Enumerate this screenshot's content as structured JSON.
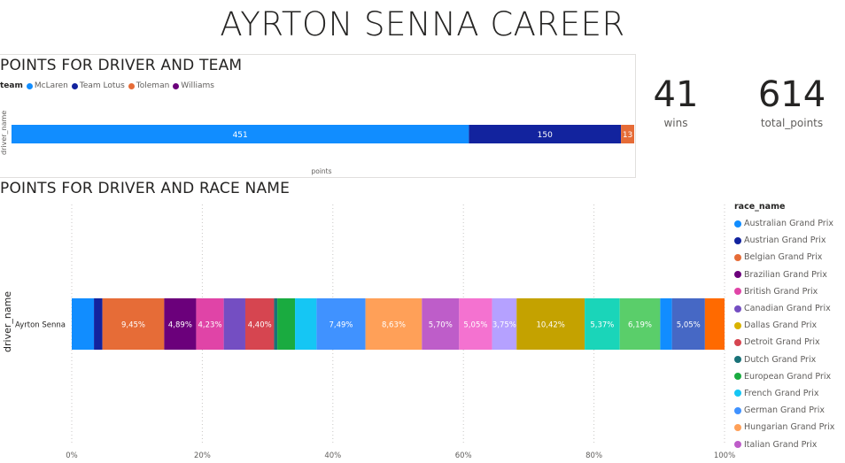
{
  "page": {
    "title": "AYRTON SENNA CAREER"
  },
  "kpis": [
    {
      "value": "41",
      "label": "wins"
    },
    {
      "value": "614",
      "label": "total_points"
    }
  ],
  "colors": {
    "McLaren": "#118DFF",
    "Team Lotus": "#12239E",
    "Toleman": "#E66C37",
    "Williams": "#6B007B"
  },
  "chart_data": [
    {
      "type": "bar",
      "orientation": "horizontal",
      "stacked": true,
      "title": "POINTS FOR DRIVER AND TEAM",
      "xlabel": "points",
      "ylabel": "driver_name",
      "legend_title": "team",
      "legend_position": "top-left",
      "categories": [
        ""
      ],
      "xlim": [
        0,
        614
      ],
      "series": [
        {
          "name": "McLaren",
          "values": [
            451
          ],
          "color": "#118DFF",
          "label": "451"
        },
        {
          "name": "Team Lotus",
          "values": [
            150
          ],
          "color": "#12239E",
          "label": "150"
        },
        {
          "name": "Toleman",
          "values": [
            13
          ],
          "color": "#E66C37",
          "label": "13"
        },
        {
          "name": "Williams",
          "values": [
            0
          ],
          "color": "#6B007B",
          "label": ""
        }
      ]
    },
    {
      "type": "bar",
      "orientation": "horizontal",
      "stacked": true,
      "percent_stacked": true,
      "title": "POINTS FOR DRIVER AND RACE NAME",
      "ylabel": "driver_name",
      "legend_title": "race_name",
      "legend_position": "right",
      "categories": [
        "Ayrton Senna"
      ],
      "xlim": [
        0,
        100
      ],
      "x_ticks": [
        "0%",
        "20%",
        "40%",
        "60%",
        "80%",
        "100%"
      ],
      "grid": true,
      "legend": [
        {
          "name": "Australian Grand Prix",
          "color": "#118DFF"
        },
        {
          "name": "Austrian Grand Prix",
          "color": "#12239E"
        },
        {
          "name": "Belgian Grand Prix",
          "color": "#E66C37"
        },
        {
          "name": "Brazilian Grand Prix",
          "color": "#6B007B"
        },
        {
          "name": "British Grand Prix",
          "color": "#E044A7"
        },
        {
          "name": "Canadian Grand Prix",
          "color": "#744EC2"
        },
        {
          "name": "Dallas Grand Prix",
          "color": "#D9B300"
        },
        {
          "name": "Detroit Grand Prix",
          "color": "#D64550"
        },
        {
          "name": "Dutch Grand Prix",
          "color": "#197278"
        },
        {
          "name": "European Grand Prix",
          "color": "#1AAB40"
        },
        {
          "name": "French Grand Prix",
          "color": "#15C6F4"
        },
        {
          "name": "German Grand Prix",
          "color": "#4092FF"
        },
        {
          "name": "Hungarian Grand Prix",
          "color": "#FFA058"
        },
        {
          "name": "Italian Grand Prix",
          "color": "#BE5DC9"
        }
      ],
      "series": [
        {
          "color": "#118DFF",
          "values": [
            3.4
          ],
          "label": ""
        },
        {
          "color": "#12239E",
          "values": [
            1.3
          ],
          "label": ""
        },
        {
          "color": "#E66C37",
          "values": [
            9.45
          ],
          "label": "9,45%"
        },
        {
          "color": "#6B007B",
          "values": [
            4.89
          ],
          "label": "4,89%"
        },
        {
          "color": "#E044A7",
          "values": [
            4.23
          ],
          "label": "4,23%"
        },
        {
          "color": "#744EC2",
          "values": [
            3.3
          ],
          "label": ""
        },
        {
          "color": "#D64550",
          "values": [
            4.4
          ],
          "label": "4,40%"
        },
        {
          "color": "#197278",
          "values": [
            0.5
          ],
          "label": ""
        },
        {
          "color": "#1AAB40",
          "values": [
            2.7
          ],
          "label": ""
        },
        {
          "color": "#15C6F4",
          "values": [
            3.3
          ],
          "label": ""
        },
        {
          "color": "#4092FF",
          "values": [
            7.49
          ],
          "label": "7,49%"
        },
        {
          "color": "#FFA058",
          "values": [
            8.63
          ],
          "label": "8,63%"
        },
        {
          "color": "#BE5DC9",
          "values": [
            5.7
          ],
          "label": "5,70%"
        },
        {
          "color": "#F472D0",
          "values": [
            5.05
          ],
          "label": "5,05%"
        },
        {
          "color": "#B5A1FF",
          "values": [
            3.75
          ],
          "label": "3,75%"
        },
        {
          "color": "#C4A200",
          "values": [
            10.42
          ],
          "label": "10,42%"
        },
        {
          "color": "#1AD5B9",
          "values": [
            5.37
          ],
          "label": "5,37%"
        },
        {
          "color": "#5ACE6A",
          "values": [
            6.19
          ],
          "label": "6,19%"
        },
        {
          "color": "#118DFF",
          "values": [
            1.8
          ],
          "label": ""
        },
        {
          "color": "#4668C5",
          "values": [
            5.05
          ],
          "label": "5,05%"
        },
        {
          "color": "#FF6A00",
          "values": [
            3.0
          ],
          "label": ""
        }
      ]
    }
  ]
}
